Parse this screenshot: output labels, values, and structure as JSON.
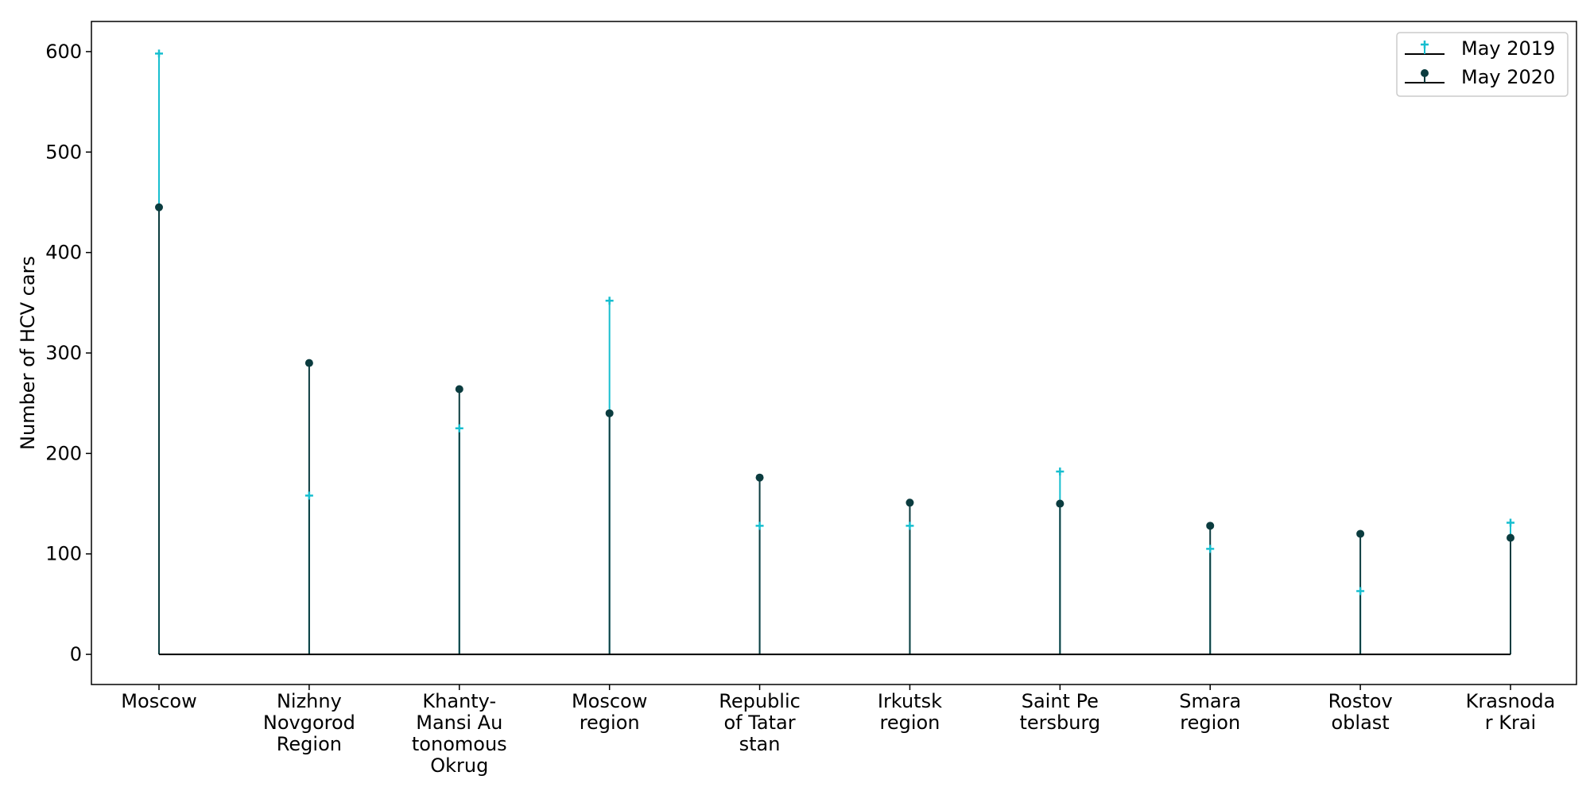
{
  "chart_data": {
    "type": "stem",
    "ylabel": "Number of HCV cars",
    "xlabel": "",
    "title": "",
    "ylim": [
      -30,
      630
    ],
    "yticks": [
      0,
      100,
      200,
      300,
      400,
      500,
      600
    ],
    "categories": [
      [
        "Moscow"
      ],
      [
        "Nizhny",
        "Novgorod",
        "Region"
      ],
      [
        "Khanty-",
        "Mansi Au",
        "tonomous",
        "Okrug"
      ],
      [
        "Moscow",
        "region"
      ],
      [
        "Republic",
        "of Tatar",
        "stan"
      ],
      [
        "Irkutsk",
        "region"
      ],
      [
        "Saint Pe",
        "tersburg"
      ],
      [
        "Smara",
        "region"
      ],
      [
        "Rostov",
        "oblast"
      ],
      [
        "Krasnoda",
        "r Krai"
      ]
    ],
    "series": [
      {
        "name": "May 2019",
        "marker": "plus",
        "color": "#17becf",
        "values": [
          598,
          158,
          225,
          352,
          128,
          128,
          182,
          105,
          63,
          131
        ]
      },
      {
        "name": "May 2020",
        "marker": "circle",
        "color": "#0b3c3f",
        "values": [
          445,
          290,
          264,
          240,
          176,
          151,
          150,
          128,
          120,
          116
        ]
      }
    ],
    "legend": {
      "position": "top-right"
    },
    "baseline": 0,
    "grid": false
  }
}
